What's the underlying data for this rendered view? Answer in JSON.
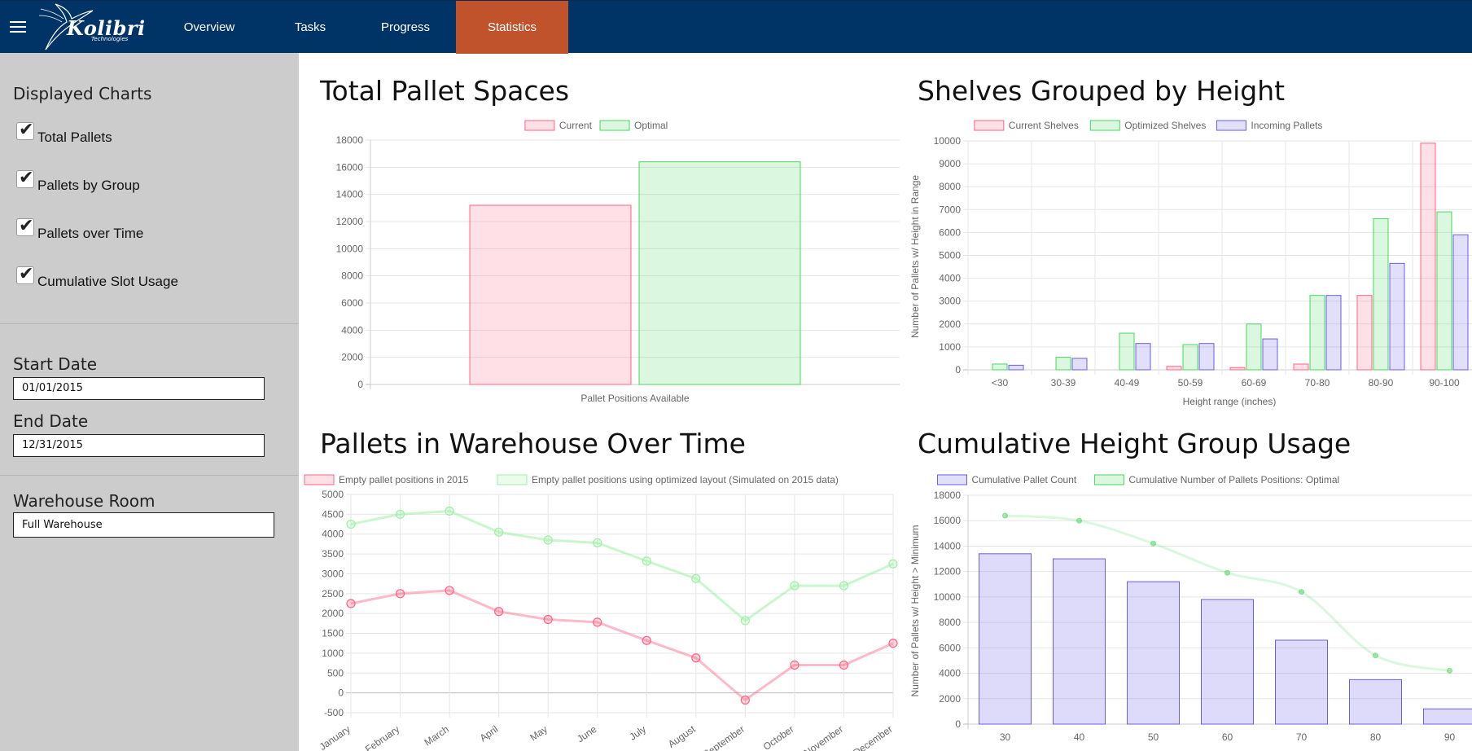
{
  "header": {
    "brand": "Kolibri",
    "brand_sub": "Technologies",
    "nav": [
      {
        "label": "Overview",
        "active": false
      },
      {
        "label": "Tasks",
        "active": false
      },
      {
        "label": "Progress",
        "active": false
      },
      {
        "label": "Statistics",
        "active": true
      }
    ],
    "colors": {
      "bar": "#003366",
      "active": "#c0532c"
    }
  },
  "sidebar": {
    "displayed_charts_title": "Displayed Charts",
    "charts": [
      {
        "label": "Total Pallets",
        "checked": true
      },
      {
        "label": "Pallets by Group",
        "checked": true
      },
      {
        "label": "Pallets over Time",
        "checked": true
      },
      {
        "label": "Cumulative Slot Usage",
        "checked": true
      }
    ],
    "start_date_label": "Start Date",
    "start_date": "01/01/2015",
    "end_date_label": "End Date",
    "end_date": "12/31/2015",
    "room_label": "Warehouse Room",
    "room": "Full Warehouse"
  },
  "panels": {
    "total": "Total Pallet Spaces",
    "shelves": "Shelves Grouped by Height",
    "over_time": "Pallets in Warehouse Over Time",
    "cumulative": "Cumulative Height Group Usage"
  },
  "chart_data": [
    {
      "type": "bar",
      "title": "Total Pallet Spaces",
      "categories": [
        "Pallet Positions Available"
      ],
      "series": [
        {
          "name": "Current",
          "values": [
            13200
          ],
          "color": "#ff6384"
        },
        {
          "name": "Optimal",
          "values": [
            16400
          ],
          "color": "#4bd65e"
        }
      ],
      "ylim": [
        0,
        18000
      ],
      "ticks": [
        "0",
        "2000",
        "4000",
        "6000",
        "8000",
        "10000",
        "12000",
        "14000",
        "16000",
        "18000"
      ],
      "legend": "top"
    },
    {
      "type": "bar",
      "title": "Shelves Grouped by Height",
      "categories": [
        "<30",
        "30-39",
        "40-49",
        "50-59",
        "60-69",
        "70-80",
        "80-90",
        "90-100"
      ],
      "series": [
        {
          "name": "Current Shelves",
          "values": [
            0,
            0,
            0,
            150,
            100,
            250,
            3250,
            9900
          ],
          "color": "#ff6384"
        },
        {
          "name": "Optimized Shelves",
          "values": [
            250,
            550,
            1600,
            1100,
            2000,
            3250,
            6600,
            6900
          ],
          "color": "#4bd65e"
        },
        {
          "name": "Incoming Pallets",
          "values": [
            200,
            500,
            1150,
            1150,
            1350,
            3250,
            4650,
            5900
          ],
          "color": "#6b5de8"
        }
      ],
      "ylim": [
        0,
        10000
      ],
      "ticks": [
        "0",
        "1000",
        "2000",
        "3000",
        "4000",
        "5000",
        "6000",
        "7000",
        "8000",
        "9000",
        "10000"
      ],
      "xlabel": "Height range (inches)",
      "ylabel": "Number of Pallets w/ Height in Range",
      "legend": "top"
    },
    {
      "type": "line",
      "title": "Pallets in Warehouse Over Time",
      "categories": [
        "January",
        "February",
        "March",
        "April",
        "May",
        "June",
        "July",
        "August",
        "September",
        "October",
        "November",
        "December"
      ],
      "series": [
        {
          "name": "Empty pallet positions in 2015",
          "values": [
            2250,
            2500,
            2580,
            2050,
            1850,
            1780,
            1320,
            880,
            -180,
            700,
            700,
            1250
          ],
          "color": "#ff6384"
        },
        {
          "name": "Empty pallet positions using optimized layout (Simulated on 2015 data)",
          "values": [
            4250,
            4500,
            4580,
            4050,
            3850,
            3780,
            3320,
            2880,
            1820,
            2700,
            2700,
            3250
          ],
          "color": "#9df0a4"
        }
      ],
      "ylim": [
        -500,
        5000
      ],
      "ticks": [
        "-500",
        "0",
        "500",
        "1000",
        "1500",
        "2000",
        "2500",
        "3000",
        "3500",
        "4000",
        "4500",
        "5000"
      ],
      "legend": "top"
    },
    {
      "type": "bar",
      "title": "Cumulative Height Group Usage",
      "categories": [
        "30",
        "40",
        "50",
        "60",
        "70",
        "80",
        "90"
      ],
      "series": [
        {
          "name": "Cumulative Pallet Count",
          "values": [
            13400,
            13000,
            11200,
            9800,
            6600,
            3500,
            1200
          ],
          "color": "#6b5de8"
        },
        {
          "name": "Cumulative Number of Pallets Positions: Optimal",
          "values": [
            16400,
            16000,
            14200,
            11900,
            10400,
            5400,
            4200
          ],
          "color": "#4bd65e",
          "type": "line"
        }
      ],
      "ylim": [
        0,
        18000
      ],
      "ticks": [
        "0",
        "2000",
        "4000",
        "6000",
        "8000",
        "10000",
        "12000",
        "14000",
        "16000",
        "18000"
      ],
      "ylabel": "Number of Pallets w/ Height > Minimum",
      "legend": "top"
    }
  ]
}
